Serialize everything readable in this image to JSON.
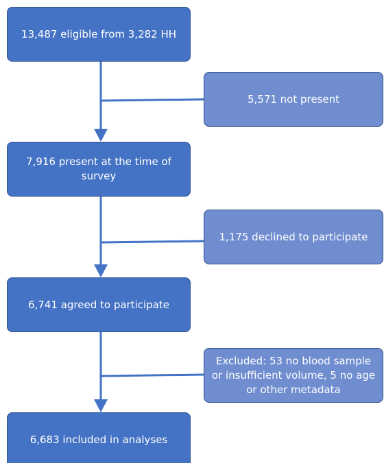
{
  "nodes": [
    {
      "label": "13,487 eligible from 3,282 HH"
    },
    {
      "label": "5,571 not present"
    },
    {
      "label": "7,916 present at the time of survey"
    },
    {
      "label": "1,175 declined to participate"
    },
    {
      "label": "6,741 agreed to participate"
    },
    {
      "label": "Excluded: 53 no blood sample or insufficient volume, 5 no age or other metadata"
    },
    {
      "label": "6,683 included in analyses"
    }
  ]
}
